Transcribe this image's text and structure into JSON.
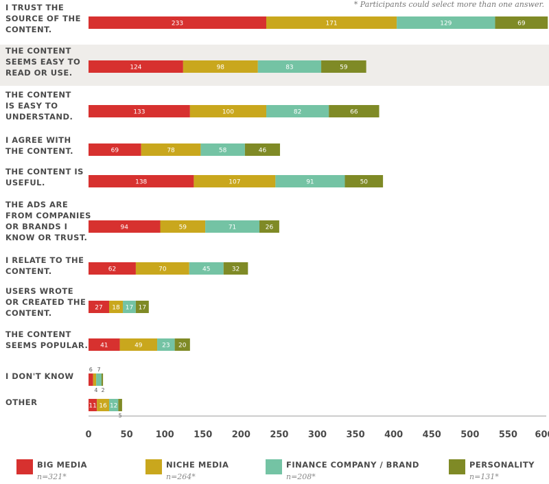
{
  "chart_data": {
    "type": "bar",
    "orientation": "horizontal",
    "stacked": true,
    "note": "* Participants could select more than one answer.",
    "categories": [
      [
        "I TRUST THE",
        "SOURCE OF THE",
        "CONTENT."
      ],
      [
        "THE CONTENT",
        "SEEMS EASY TO",
        "READ OR USE."
      ],
      [
        "THE CONTENT",
        "IS EASY TO",
        "UNDERSTAND."
      ],
      [
        "I AGREE WITH",
        "THE CONTENT."
      ],
      [
        "THE CONTENT IS",
        "USEFUL."
      ],
      [
        "THE ADS ARE",
        "FROM COMPANIES",
        "OR BRANDS I",
        "KNOW OR TRUST."
      ],
      [
        "I RELATE TO THE",
        "CONTENT."
      ],
      [
        "USERS WROTE",
        "OR CREATED THE",
        "CONTENT."
      ],
      [
        "THE CONTENT",
        "SEEMS POPULAR."
      ],
      [
        "I DON'T KNOW"
      ],
      [
        "OTHER"
      ]
    ],
    "series": [
      {
        "name": "BIG MEDIA",
        "n": "n=321*",
        "color": "#d7312f",
        "values": [
          233,
          124,
          133,
          69,
          138,
          94,
          62,
          27,
          41,
          6,
          11
        ]
      },
      {
        "name": "NICHE MEDIA",
        "n": "n=264*",
        "color": "#c9a71d",
        "values": [
          171,
          98,
          100,
          78,
          107,
          59,
          70,
          18,
          49,
          4,
          16
        ]
      },
      {
        "name": "FINANCE COMPANY / BRAND",
        "n": "n=208*",
        "color": "#74c3a4",
        "values": [
          129,
          83,
          82,
          58,
          91,
          71,
          45,
          17,
          23,
          7,
          12
        ]
      },
      {
        "name": "PERSONALITY",
        "n": "n=131*",
        "color": "#7f8a26",
        "values": [
          69,
          59,
          66,
          46,
          50,
          26,
          32,
          17,
          20,
          2,
          5
        ]
      }
    ],
    "xlim": [
      0,
      600
    ],
    "xticks": [
      "0",
      "50",
      "100",
      "150",
      "200",
      "250",
      "300",
      "350",
      "400",
      "450",
      "500",
      "550",
      "600"
    ],
    "highlight_row": 1,
    "xlabel": "",
    "ylabel": ""
  }
}
